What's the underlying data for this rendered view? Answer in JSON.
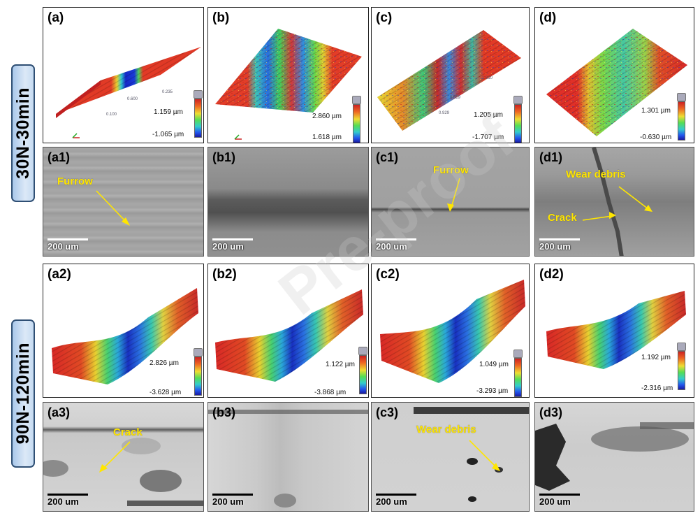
{
  "row_labels": [
    "30N-30min",
    "90N-120min"
  ],
  "topo_panels": [
    {
      "label": "(a)",
      "max": "1.159 µm",
      "min": "-1.065 µm",
      "style": "band-blue"
    },
    {
      "label": "(b)",
      "max": "2.860 µm",
      "min": "1.618 µm",
      "style": "noisy"
    },
    {
      "label": "(c)",
      "max": "1.205 µm",
      "min": "-1.707 µm",
      "style": "noisy-red"
    },
    {
      "label": "(d)",
      "max": "1.301 µm",
      "min": "-0.630 µm",
      "style": "green"
    },
    {
      "label": "(a2)",
      "max": "2.826 µm",
      "min": "-3.628 µm",
      "style": "groove"
    },
    {
      "label": "(b2)",
      "max": "1.122 µm",
      "min": "-3.868 µm",
      "style": "groove"
    },
    {
      "label": "(c2)",
      "max": "1.049 µm",
      "min": "-3.293 µm",
      "style": "groove"
    },
    {
      "label": "(d2)",
      "max": "1.192 µm",
      "min": "-2.316 µm",
      "style": "groove"
    }
  ],
  "sem_panels": [
    {
      "label": "(a1)",
      "scale": "200 um",
      "annotations": [
        "Furrow"
      ]
    },
    {
      "label": "(b1)",
      "scale": "200 um",
      "annotations": []
    },
    {
      "label": "(c1)",
      "scale": "200 um",
      "annotations": [
        "Furrow"
      ]
    },
    {
      "label": "(d1)",
      "scale": "200 um",
      "annotations": [
        "Wear debris",
        "Crack"
      ]
    },
    {
      "label": "(a3)",
      "scale": "200 um",
      "annotations": [
        "Crack"
      ]
    },
    {
      "label": "(b3)",
      "scale": "200 um",
      "annotations": []
    },
    {
      "label": "(c3)",
      "scale": "200 um",
      "annotations": [
        "Wear debris"
      ]
    },
    {
      "label": "(d3)",
      "scale": "200 um",
      "annotations": []
    }
  ],
  "watermark": "Pre-proof",
  "colors": {
    "annotation": "#ffe600",
    "row_label_border": "#2f4f74",
    "row_label_fill": "#c6dbf2"
  }
}
